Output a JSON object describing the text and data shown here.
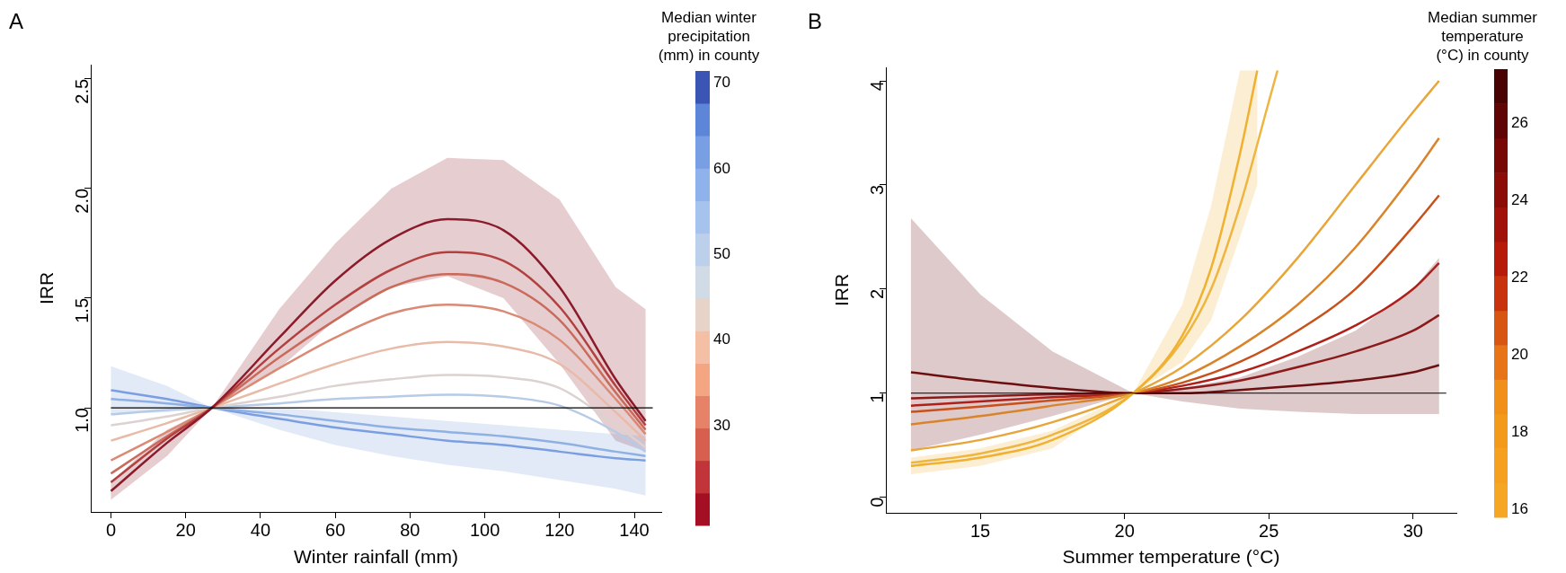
{
  "chart_data": [
    {
      "type": "line",
      "title": "A",
      "xlabel": "Winter rainfall (mm)",
      "ylabel": "IRR",
      "clabel": "Median winter precipitation (mm) in county",
      "clim": [
        18.4,
        71.4
      ],
      "cticks": [
        30,
        40,
        50,
        60,
        70
      ],
      "xlim": [
        -5.4,
        147.2
      ],
      "ylim": [
        0.525,
        2.565
      ],
      "xticks": [
        0,
        20,
        40,
        60,
        80,
        100,
        120,
        140
      ],
      "yticks": [
        {
          "value": 1,
          "label": "1.0"
        },
        {
          "value": 1.5,
          "label": "1.5"
        },
        {
          "value": 2,
          "label": "2.0"
        },
        {
          "value": 2.5,
          "label": "2.5"
        }
      ],
      "grid": false,
      "legend": false,
      "x": [
        0,
        15,
        27,
        45,
        60,
        75,
        90,
        105,
        120,
        135,
        143
      ],
      "series": [
        {
          "color": "#8b1a2b",
          "values": [
            0.62,
            0.84,
            1.0,
            1.32,
            1.58,
            1.77,
            1.86,
            1.81,
            1.55,
            1.13,
            0.94
          ],
          "upper": [
            0.66,
            0.9,
            1.0,
            1.45,
            1.75,
            2.0,
            2.14,
            2.13,
            1.95,
            1.55,
            1.45
          ],
          "lower": [
            0.58,
            0.78,
            1.0,
            1.18,
            1.4,
            1.55,
            1.6,
            1.5,
            1.2,
            0.85,
            0.8
          ]
        },
        {
          "color": "#b2403f",
          "values": [
            0.66,
            0.86,
            1.0,
            1.27,
            1.47,
            1.63,
            1.71,
            1.67,
            1.46,
            1.1,
            0.92
          ]
        },
        {
          "color": "#c96a5b",
          "values": [
            0.7,
            0.87,
            1.0,
            1.23,
            1.4,
            1.55,
            1.61,
            1.57,
            1.4,
            1.07,
            0.9
          ]
        },
        {
          "color": "#da8a74",
          "values": [
            0.76,
            0.89,
            1.0,
            1.18,
            1.32,
            1.43,
            1.47,
            1.44,
            1.31,
            1.04,
            0.88
          ]
        },
        {
          "color": "#e8bba8",
          "values": [
            0.85,
            0.93,
            1.0,
            1.11,
            1.2,
            1.27,
            1.3,
            1.28,
            1.2,
            0.98,
            0.85
          ]
        },
        {
          "color": "#dcd2d0",
          "values": [
            0.92,
            0.96,
            1.0,
            1.05,
            1.1,
            1.13,
            1.15,
            1.14,
            1.09,
            0.92,
            0.82
          ]
        },
        {
          "color": "#b7cbe6",
          "values": [
            0.97,
            0.99,
            1.0,
            1.02,
            1.04,
            1.05,
            1.06,
            1.05,
            1.01,
            0.89,
            0.8
          ]
        },
        {
          "color": "#8fb0e3",
          "values": [
            1.04,
            1.02,
            1.0,
            0.97,
            0.94,
            0.91,
            0.89,
            0.87,
            0.84,
            0.8,
            0.78
          ]
        },
        {
          "color": "#7a9ee0",
          "values": [
            1.08,
            1.04,
            1.0,
            0.95,
            0.91,
            0.88,
            0.85,
            0.83,
            0.8,
            0.77,
            0.76
          ],
          "upper": [
            1.19,
            1.1,
            1.0,
            1.0,
            0.98,
            0.96,
            0.94,
            0.92,
            0.9,
            0.88,
            0.87
          ],
          "lower": [
            0.97,
            0.98,
            1.0,
            0.9,
            0.83,
            0.78,
            0.74,
            0.71,
            0.67,
            0.63,
            0.6
          ]
        }
      ],
      "ref_lines": [
        {
          "axis": "y",
          "value": 1,
          "color": "#000000"
        }
      ]
    },
    {
      "type": "line",
      "title": "B",
      "xlabel": "Summer temperature (°C)",
      "ylabel": "IRR",
      "clabel": "Median summer temperature (°C) in county",
      "clim": [
        15.8,
        27.4
      ],
      "cticks": [
        16,
        18,
        20,
        22,
        24,
        26
      ],
      "xlim": [
        11.73,
        31.5
      ],
      "ylim": [
        -0.15,
        4.13
      ],
      "xticks": [
        15,
        20,
        25,
        30
      ],
      "yticks": [
        0,
        1,
        2,
        3,
        4
      ],
      "grid": false,
      "legend": false,
      "x": [
        12.6,
        15,
        17.5,
        20.3,
        22,
        24,
        26,
        28,
        30,
        30.9
      ],
      "series": [
        {
          "color": "#f0b030",
          "x": [
            12.6,
            15,
            17.5,
            20.3,
            22,
            23,
            24,
            24.6
          ],
          "values": [
            0.3,
            0.38,
            0.55,
            1.0,
            1.55,
            2.2,
            3.3,
            4.1
          ],
          "upper": [
            0.38,
            0.47,
            0.64,
            1.0,
            1.85,
            2.8,
            4.1,
            4.1
          ],
          "lower": [
            0.22,
            0.3,
            0.47,
            1.0,
            1.3,
            1.7,
            2.5,
            3.0
          ]
        },
        {
          "color": "#eeb540",
          "x": [
            12.6,
            15,
            17.5,
            20.3,
            22,
            23,
            24,
            25,
            25.3
          ],
          "values": [
            0.33,
            0.42,
            0.6,
            1.0,
            1.5,
            2.0,
            2.8,
            3.8,
            4.1
          ]
        },
        {
          "color": "#e8a63a",
          "values": [
            0.45,
            0.55,
            0.72,
            1.0,
            1.25,
            1.7,
            2.3,
            3.0,
            3.7,
            4.0
          ]
        },
        {
          "color": "#d9842a",
          "values": [
            0.7,
            0.78,
            0.88,
            1.0,
            1.15,
            1.45,
            1.85,
            2.4,
            3.1,
            3.45
          ]
        },
        {
          "color": "#c8501a",
          "values": [
            0.82,
            0.87,
            0.93,
            1.0,
            1.1,
            1.3,
            1.6,
            2.0,
            2.6,
            2.9
          ]
        },
        {
          "color": "#b0201a",
          "values": [
            0.88,
            0.92,
            0.96,
            1.0,
            1.07,
            1.2,
            1.4,
            1.65,
            2.0,
            2.25
          ]
        },
        {
          "color": "#8b1a1a",
          "values": [
            0.95,
            0.97,
            0.99,
            1.0,
            1.04,
            1.12,
            1.25,
            1.4,
            1.6,
            1.75
          ]
        },
        {
          "color": "#6b0f10",
          "values": [
            1.2,
            1.12,
            1.05,
            1.0,
            1.0,
            1.03,
            1.07,
            1.12,
            1.2,
            1.27
          ],
          "upper": [
            2.68,
            1.95,
            1.4,
            1.0,
            1.05,
            1.15,
            1.35,
            1.6,
            2.0,
            2.3
          ],
          "lower": [
            0.45,
            0.6,
            0.78,
            1.0,
            0.92,
            0.85,
            0.82,
            0.8,
            0.8,
            0.8
          ]
        }
      ],
      "ref_lines": [
        {
          "axis": "y",
          "value": 1,
          "color": "#000000"
        }
      ]
    }
  ]
}
